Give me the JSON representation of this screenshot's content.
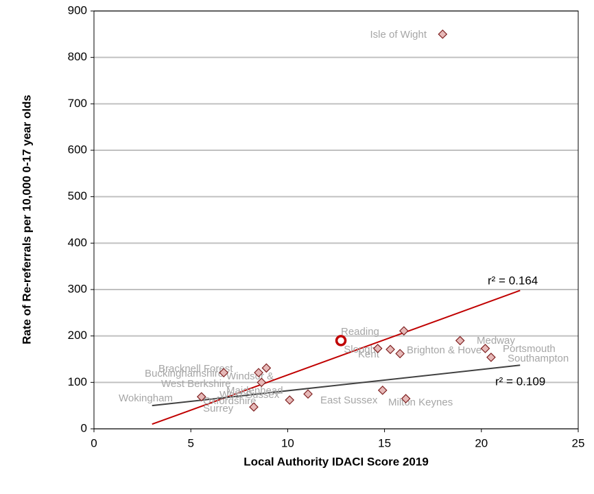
{
  "chart_data": {
    "type": "scatter",
    "x_label": "Local Authority IDACI Score 2019",
    "y_label": "Rate of Re-referrals per 10,000 0-17 year olds",
    "xlim": [
      0,
      25
    ],
    "xticks": [
      0,
      5,
      10,
      15,
      20,
      25
    ],
    "ylim": [
      0,
      900
    ],
    "yticks": [
      0,
      100,
      200,
      300,
      400,
      500,
      600,
      700,
      800,
      900
    ],
    "grid": true,
    "color": "#e6b9b8",
    "edge_color": "#7f2020",
    "highlight_color": "#c00000",
    "highlight_index": 1,
    "x": [
      18.0,
      12.75,
      16.0,
      14.65,
      15.3,
      15.8,
      18.9,
      20.2,
      20.5,
      14.9,
      16.1,
      8.9,
      8.5,
      8.65,
      10.1,
      11.05,
      6.7,
      5.55,
      8.25
    ],
    "values": [
      850,
      190,
      211,
      173,
      171,
      162,
      190,
      173,
      154,
      83,
      65,
      131,
      121,
      100,
      62,
      75,
      121,
      69,
      47
    ],
    "labels": [
      "Isle of Wight",
      "Reading",
      null,
      "Slough",
      "Kent",
      "Brighton & Hove",
      "Medway",
      "Portsmouth",
      "Southampton",
      "East Sussex",
      "Milton Keynes",
      "Bracknell Forest",
      [
        "Windsor &",
        "Maidenhead"
      ],
      "West Berkshire",
      "Oxfordshire",
      "West Sussex",
      "Buckinghamshire",
      "Wokingham",
      "Surrey"
    ],
    "trendlines": [
      {
        "label": "r² = 0.164",
        "color": "#c00000",
        "x": [
          3,
          22
        ],
        "y": [
          10,
          298
        ]
      },
      {
        "label": "r² = 0.109",
        "color": "#404040",
        "x": [
          3,
          22
        ],
        "y": [
          50,
          137
        ]
      }
    ]
  }
}
